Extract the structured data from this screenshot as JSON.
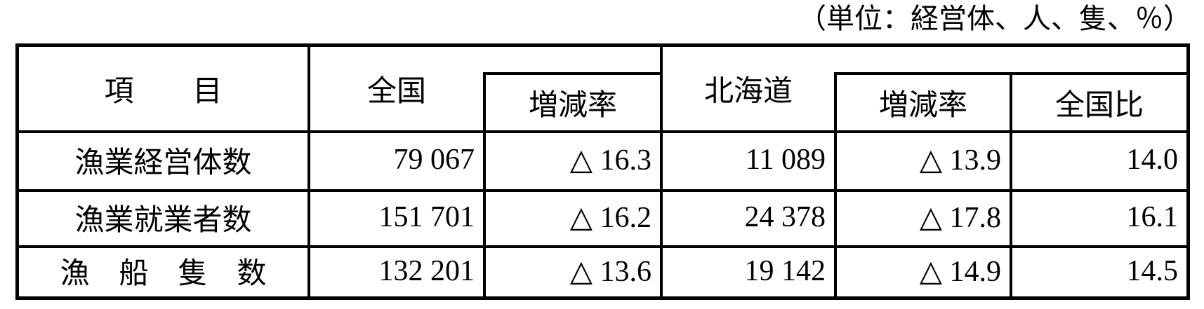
{
  "caption": "（単位：経営体、人、隻、％）",
  "table": {
    "header": {
      "item": "項　　目",
      "national": "全国",
      "change_rate_national": "増減率",
      "hokkaido": "北海道",
      "change_rate_hokkaido": "増減率",
      "national_share": "全国比"
    },
    "rows": [
      {
        "label": "漁業経営体数",
        "national": "79 067",
        "national_change": "△ 16.3",
        "hokkaido": "11 089",
        "hokkaido_change": "△ 13.9",
        "share": "14.0"
      },
      {
        "label": "漁業就業者数",
        "national": "151 701",
        "national_change": "△ 16.2",
        "hokkaido": "24 378",
        "hokkaido_change": "△ 17.8",
        "share": "16.1"
      },
      {
        "label": "漁　船　隻　数",
        "national": "132 201",
        "national_change": "△ 13.6",
        "hokkaido": "19 142",
        "hokkaido_change": "△ 14.9",
        "share": "14.5"
      }
    ]
  },
  "colors": {
    "border": "#000000",
    "background": "#ffffff",
    "text": "#000000"
  }
}
